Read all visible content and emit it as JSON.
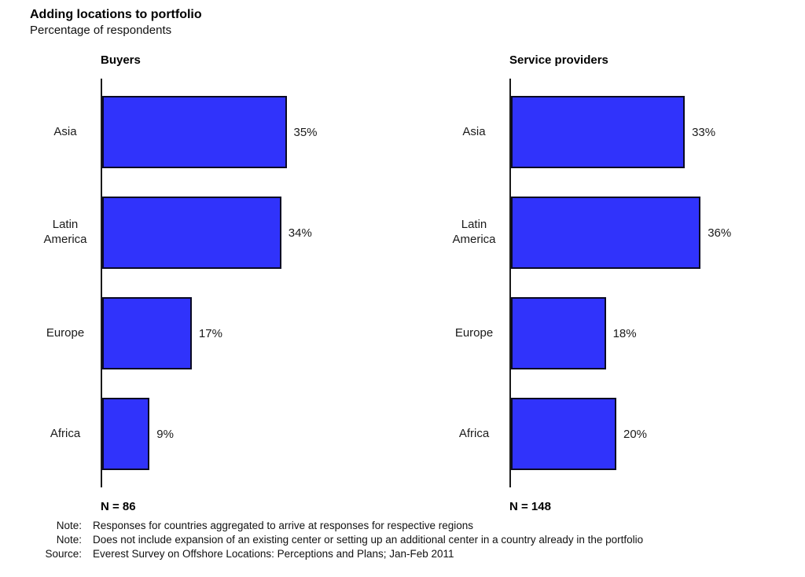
{
  "page": {
    "title": "Adding locations to portfolio",
    "subtitle": "Percentage of respondents"
  },
  "colors": {
    "bar_fill": "#3033fb",
    "bar_border": "#0a0a23",
    "axis": "#1a1a1a"
  },
  "chart_data": [
    {
      "type": "bar",
      "orientation": "horizontal",
      "title": "Buyers",
      "categories": [
        "Asia",
        "Latin America",
        "Europe",
        "Africa"
      ],
      "values": [
        35,
        34,
        17,
        9
      ],
      "value_labels": [
        "35%",
        "34%",
        "17%",
        "9%"
      ],
      "sample_label": "N = 86",
      "xlim": [
        0,
        40
      ],
      "grid": false,
      "legend": false
    },
    {
      "type": "bar",
      "orientation": "horizontal",
      "title": "Service providers",
      "categories": [
        "Asia",
        "Latin America",
        "Europe",
        "Africa"
      ],
      "values": [
        33,
        36,
        18,
        20
      ],
      "value_labels": [
        "33%",
        "36%",
        "18%",
        "20%"
      ],
      "sample_label": "N = 148",
      "xlim": [
        0,
        40
      ],
      "grid": false,
      "legend": false
    }
  ],
  "notes": [
    {
      "label": "Note:",
      "text": "Responses for countries aggregated to arrive at responses for respective regions"
    },
    {
      "label": "Note:",
      "text": "Does not include expansion of an existing center or setting up an additional center in a country already in the portfolio"
    },
    {
      "label": "Source:",
      "text": "Everest Survey on Offshore Locations: Perceptions and Plans; Jan-Feb 2011"
    }
  ]
}
